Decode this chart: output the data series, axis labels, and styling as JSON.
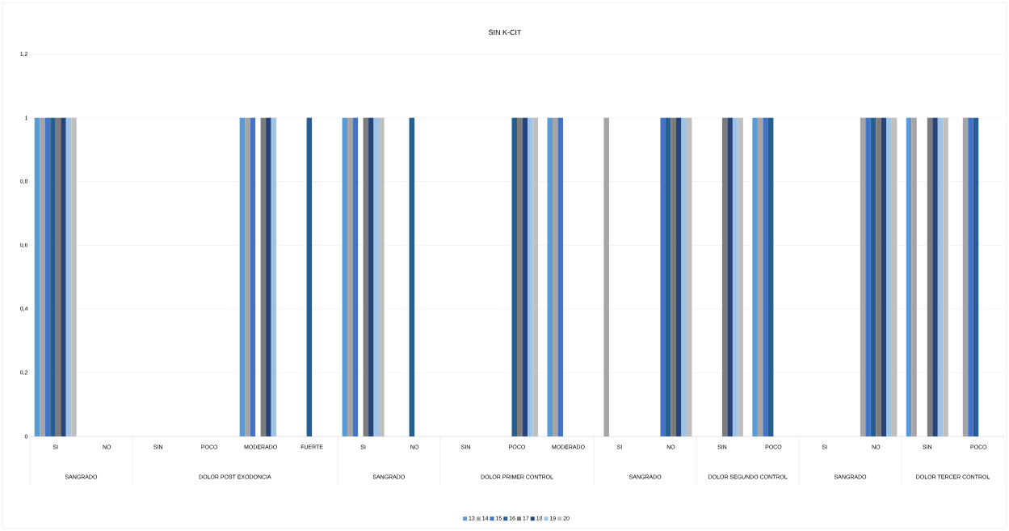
{
  "chart_data": {
    "type": "bar",
    "title": "SIN K-CIT",
    "categories": [
      "SI",
      "NO",
      "SIN",
      "POCO",
      "MODERADO",
      "FUERTE",
      "SI",
      "NO",
      "SIN",
      "POCO",
      "MODERADO",
      "SI",
      "NO",
      "SIN",
      "POCO",
      "SI",
      "NO",
      "SIN",
      "POCO"
    ],
    "annotations": [
      "SANGRADO",
      "DOLOR POST EXODONCIA",
      "SANGRADO",
      "DOLOR PRIMER CONTROL",
      "SANGRADO",
      "DOLOR SEGUNDO CONTROL",
      "SANGRADO",
      "DOLOR TERCER CONTROL"
    ],
    "series": [
      {
        "name": "13",
        "color": "#5b9bd5",
        "values": [
          1,
          0,
          0,
          0,
          1,
          0,
          1,
          0,
          0,
          0,
          1,
          0,
          0,
          0,
          1,
          0,
          0,
          1,
          0
        ]
      },
      {
        "name": "14",
        "color": "#a5a5a5",
        "values": [
          1,
          0,
          0,
          0,
          1,
          0,
          1,
          0,
          0,
          0,
          1,
          1,
          0,
          0,
          1,
          0,
          1,
          1,
          1
        ]
      },
      {
        "name": "15",
        "color": "#4472c4",
        "values": [
          1,
          0,
          0,
          0,
          1,
          0,
          1,
          0,
          0,
          0,
          1,
          0,
          1,
          0,
          1,
          0,
          1,
          0,
          1
        ]
      },
      {
        "name": "16",
        "color": "#255e91",
        "values": [
          1,
          0,
          0,
          0,
          0,
          1,
          0,
          1,
          0,
          1,
          0,
          0,
          1,
          0,
          1,
          0,
          1,
          0,
          1
        ]
      },
      {
        "name": "17",
        "color": "#7c7c7c",
        "values": [
          1,
          0,
          0,
          0,
          1,
          0,
          1,
          0,
          0,
          1,
          0,
          0,
          1,
          1,
          0,
          0,
          1,
          1,
          0
        ]
      },
      {
        "name": "18",
        "color": "#264478",
        "values": [
          1,
          0,
          0,
          0,
          1,
          0,
          1,
          0,
          0,
          1,
          0,
          0,
          1,
          1,
          0,
          0,
          1,
          1,
          0
        ]
      },
      {
        "name": "19",
        "color": "#9dc3e6",
        "values": [
          1,
          0,
          0,
          0,
          1,
          0,
          1,
          0,
          0,
          1,
          0,
          0,
          1,
          1,
          0,
          0,
          1,
          1,
          0
        ]
      },
      {
        "name": "20",
        "color": "#bfbfbf",
        "values": [
          1,
          0,
          0,
          0,
          0,
          0,
          1,
          0,
          0,
          1,
          0,
          0,
          1,
          1,
          0,
          0,
          1,
          1,
          0
        ]
      }
    ],
    "ylim": [
      0,
      1.2
    ],
    "yticks": [
      0,
      {
        "value": 0.2,
        "label": "0,2"
      },
      {
        "value": 0.4,
        "label": "0,4"
      },
      {
        "value": 0.6,
        "label": "0,6"
      },
      {
        "value": 0.8,
        "label": "0,8"
      },
      1,
      {
        "value": 1.2,
        "label": "1,2"
      }
    ],
    "grid": "y",
    "legend": "bottom"
  }
}
